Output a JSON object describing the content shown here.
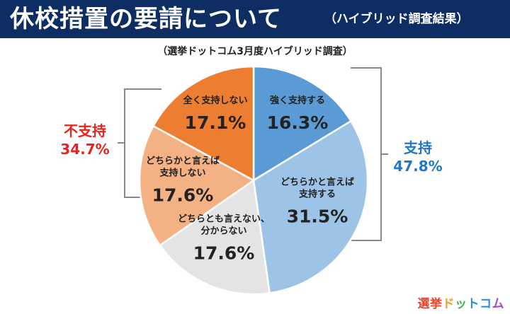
{
  "header": {
    "title": "休校措置の要請について",
    "subtitle": "（ハイブリッド調査結果）"
  },
  "source_note": "（選挙ドットコム3月度ハイブリッド調査）",
  "groups": {
    "support": {
      "label": "支持",
      "value": "47.8%",
      "color": "#1f78c8"
    },
    "oppose": {
      "label": "不支持",
      "value": "34.7%",
      "color": "#e8231f"
    }
  },
  "brand": {
    "text": "選挙ドットコム",
    "colors": [
      "#e8432b",
      "#e8432b",
      "#f29b1e",
      "#3cb44a",
      "#2a8fd6",
      "#2a8fd6",
      "#9a4fc6"
    ]
  },
  "chart_data": {
    "type": "pie",
    "title": "休校措置の要請について",
    "start": "12 o'clock, clockwise",
    "slices": [
      {
        "label": "強く支持する",
        "value": 16.3,
        "text": "16.3%",
        "color": "#5b9bd5"
      },
      {
        "label": "どちらかと言えば\n支持する",
        "value": 31.5,
        "text": "31.5%",
        "color": "#9dc3e6"
      },
      {
        "label": "どちらとも言えない、\n分からない",
        "value": 17.6,
        "text": "17.6%",
        "color": "#e4e4e4"
      },
      {
        "label": "どちらかと言えば\n支持しない",
        "value": 17.6,
        "text": "17.6%",
        "color": "#f4b183"
      },
      {
        "label": "全く支持しない",
        "value": 17.1,
        "text": "17.1%",
        "color": "#ed7d31"
      }
    ]
  }
}
